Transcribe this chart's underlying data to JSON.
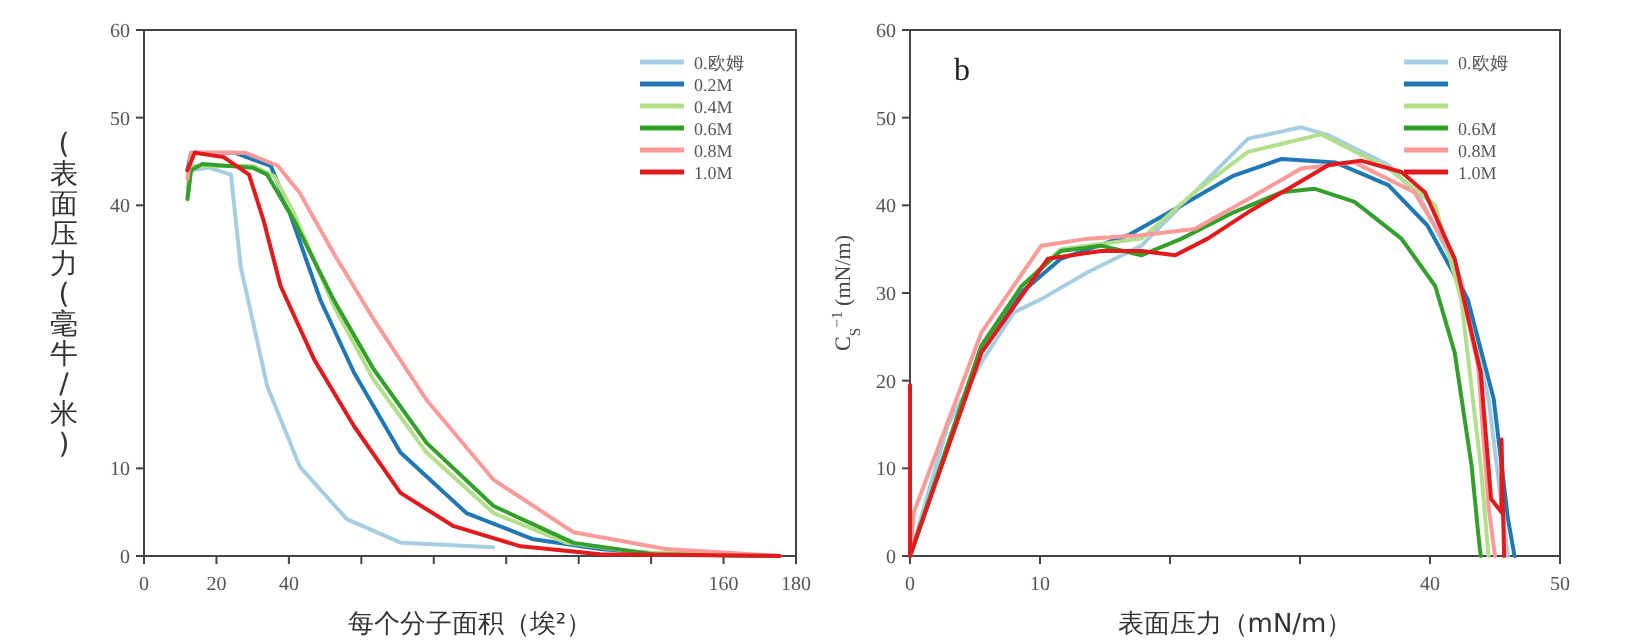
{
  "chart_data": [
    {
      "type": "line",
      "xlabel": "每个分子面积（埃²）",
      "ylabel": "(表面压力 (毫牛/米)",
      "xlim": [
        0,
        180
      ],
      "ylim": [
        0,
        60
      ],
      "xticks": [
        0,
        20,
        40,
        {
          "value": 60,
          "label": null
        },
        {
          "value": 80,
          "label": null
        },
        {
          "value": 100,
          "label": null
        },
        {
          "value": 120,
          "label": null
        },
        {
          "value": 140,
          "label": null
        },
        160,
        180
      ],
      "yticks": [
        0,
        10,
        40,
        50,
        60
      ],
      "legend": "top right",
      "series": [
        {
          "name": "0.欧姆",
          "color": "#a6cee3",
          "x": [
            12,
            13,
            18,
            24,
            26.7,
            34,
            43,
            56,
            71,
            96.5
          ],
          "values": [
            41,
            44,
            44.3,
            43.5,
            33,
            19.4,
            10.2,
            4.2,
            1.5,
            1.0
          ]
        },
        {
          "name": "0.2M",
          "color": "#1f78b4",
          "x": [
            12,
            13,
            25,
            35,
            39.5,
            48.7,
            58,
            70.8,
            89,
            107.5,
            126,
            144,
            175.5
          ],
          "values": [
            44,
            46,
            46,
            44.5,
            40,
            29.2,
            20.9,
            11.8,
            4.9,
            1.9,
            0.8,
            0.2,
            0
          ]
        },
        {
          "name": "0.4M",
          "color": "#b2df8a",
          "x": [
            12,
            13,
            30,
            36,
            41.4,
            52.4,
            63.4,
            78,
            96.5,
            116.7,
            137,
            175.5
          ],
          "values": [
            42,
            44.5,
            44.5,
            43.3,
            39.1,
            28.5,
            20.1,
            11.8,
            4.9,
            1.5,
            0.4,
            0
          ]
        },
        {
          "name": "0.6M",
          "color": "#33a02c",
          "x": [
            12,
            13,
            16,
            30,
            34,
            41.4,
            52.4,
            63.4,
            78,
            96.5,
            118.6,
            140.6,
            175.5
          ],
          "values": [
            40.7,
            44,
            44.7,
            44.3,
            43.5,
            38.3,
            29.2,
            21.3,
            12.9,
            5.7,
            1.5,
            0.2,
            0
          ]
        },
        {
          "name": "0.8M",
          "color": "#fb9a99",
          "x": [
            12,
            13,
            28,
            37,
            43,
            52.4,
            63.4,
            78,
            96.5,
            118.6,
            144,
            175.5
          ],
          "values": [
            43,
            46,
            46,
            44.5,
            41.4,
            34.5,
            27,
            17.8,
            8.7,
            2.7,
            0.8,
            0
          ]
        },
        {
          "name": "1.0M",
          "color": "#e31a1c",
          "x": [
            12,
            14,
            22,
            29,
            33,
            37.7,
            47,
            58,
            70.8,
            85.5,
            104,
            126,
            175.5
          ],
          "values": [
            44,
            46,
            45.5,
            43.5,
            38.3,
            30.8,
            22.4,
            14.8,
            7.2,
            3.4,
            1.1,
            0.2,
            0
          ]
        }
      ]
    },
    {
      "type": "line",
      "xlabel": "表面压力（mN/m）",
      "ylabel": "C$_{S}$$^{−1}$ (mN/m)",
      "xlim": [
        0,
        50
      ],
      "ylim": [
        0,
        60
      ],
      "xticks": [
        0,
        10,
        {
          "value": 20,
          "label": null
        },
        {
          "value": 30,
          "label": null
        },
        40,
        50
      ],
      "yticks": [
        0,
        10,
        20,
        30,
        40,
        50,
        60
      ],
      "legend": "top right",
      "annotations": [
        "b"
      ],
      "series": [
        {
          "name": "0.欧姆",
          "color": "#a6cee3",
          "x": [
            0,
            2.9,
            5.5,
            8,
            10.1,
            13.7,
            17.8,
            21.9,
            26,
            30.1,
            32.2,
            36.8,
            39.3,
            42.4,
            44.5,
            46
          ],
          "values": [
            0,
            14.9,
            22.1,
            27.8,
            29.3,
            32.4,
            35.4,
            41.5,
            47.6,
            48.9,
            48,
            44.6,
            40.7,
            31.6,
            17.9,
            0
          ]
        },
        {
          "name": null,
          "color": "#1f78b4",
          "x": [
            0,
            3.4,
            5.5,
            8.6,
            11.6,
            16.8,
            20.9,
            24.9,
            28.6,
            32.7,
            36.8,
            39.8,
            42.9,
            44.9,
            46,
            46.5
          ],
          "values": [
            0,
            14.9,
            24,
            30.1,
            33.9,
            36.6,
            40,
            43.4,
            45.3,
            44.9,
            42.3,
            37.7,
            29.3,
            17.9,
            4.2,
            0
          ]
        },
        {
          "name": null,
          "color": "#b2df8a",
          "x": [
            0,
            5.5,
            8.6,
            11.6,
            17.8,
            21.9,
            26,
            29.1,
            31.6,
            36.8,
            40.4,
            42.4,
            43.9,
            44.5
          ],
          "values": [
            0,
            24,
            30.8,
            35,
            36.2,
            41.5,
            46.1,
            47.2,
            48.1,
            44.2,
            40,
            29.3,
            10.3,
            0
          ]
        },
        {
          "name": "0.6M",
          "color": "#33a02c",
          "x": [
            0,
            5.5,
            8.6,
            11.6,
            14.7,
            17.8,
            20.9,
            24.9,
            28.6,
            31.1,
            34.2,
            37.8,
            40.4,
            41.9,
            43.2,
            43.7,
            43.9
          ],
          "values": [
            0,
            24,
            30.8,
            34.8,
            35.4,
            34.3,
            36.2,
            39.2,
            41.5,
            41.9,
            40.4,
            36.2,
            30.8,
            23.2,
            10.3,
            2.7,
            0
          ]
        },
        {
          "name": "0.8M",
          "color": "#fb9a99",
          "x": [
            0,
            0.3,
            5.5,
            10.1,
            13.7,
            17.8,
            21.9,
            26,
            30.1,
            34.2,
            38.8,
            41.9,
            43.7,
            44.5,
            45
          ],
          "values": [
            0,
            5,
            25.5,
            35.4,
            36.2,
            36.6,
            37.3,
            40.7,
            44.2,
            44.9,
            41.5,
            33.9,
            21.7,
            5.7,
            0
          ]
        },
        {
          "name": "1.0M",
          "color": "#e31a1c",
          "x": [
            0,
            0,
            5.5,
            10.6,
            14.7,
            17.8,
            20.4,
            22.9,
            26,
            29.1,
            32.2,
            34.7,
            37.8,
            39.6,
            41.9,
            43.9,
            44.7,
            45.5,
            45.5,
            45.7
          ],
          "values": [
            19.5,
            0,
            23.2,
            33.9,
            34.8,
            34.8,
            34.3,
            36.2,
            39.2,
            41.9,
            44.6,
            45.1,
            43.8,
            41.5,
            33.9,
            20.9,
            6.5,
            5,
            13.3,
            0
          ]
        }
      ]
    }
  ]
}
